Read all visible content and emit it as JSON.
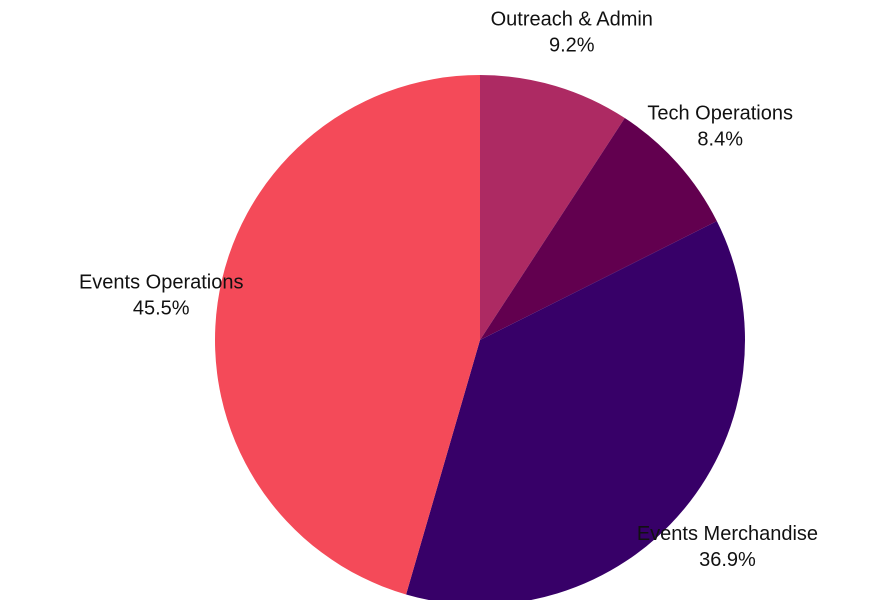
{
  "chart_data": {
    "type": "pie",
    "slices": [
      {
        "label": "Outreach & Admin",
        "value": 9.2,
        "display": "9.2%",
        "color": "#ad2a63"
      },
      {
        "label": "Tech Operations",
        "value": 8.4,
        "display": "8.4%",
        "color": "#62004f"
      },
      {
        "label": "Events Merchandise",
        "value": 36.9,
        "display": "36.9%",
        "color": "#370068"
      },
      {
        "label": "Events Operations",
        "value": 45.5,
        "display": "45.5%",
        "color": "#f44a59"
      }
    ],
    "start_angle": "12 o'clock",
    "direction": "clockwise",
    "legend": "none"
  }
}
